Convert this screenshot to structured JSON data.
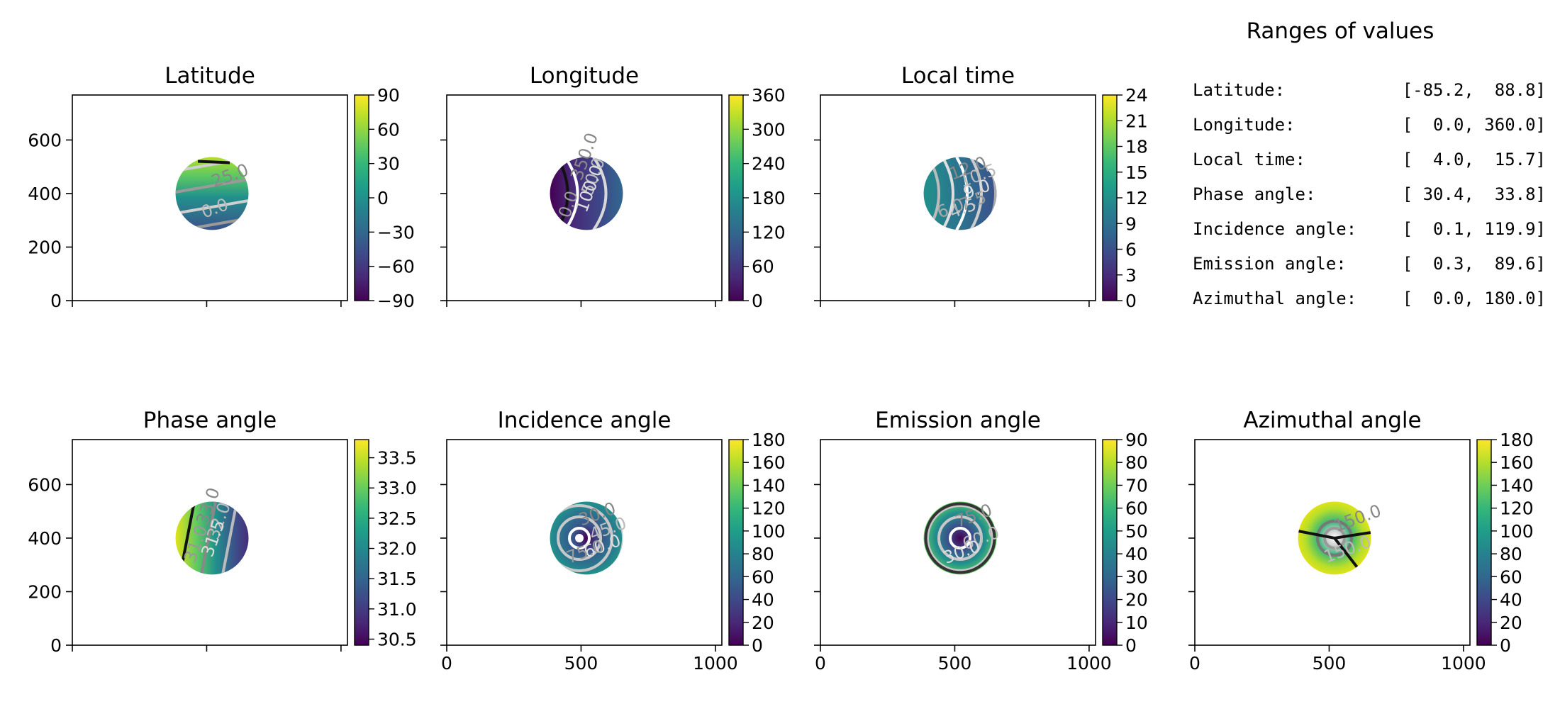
{
  "ranges_panel": {
    "title": "Ranges of values",
    "rows": [
      {
        "label": "Latitude:",
        "value": "[-85.2,  88.8]"
      },
      {
        "label": "Longitude:",
        "value": "[  0.0, 360.0]"
      },
      {
        "label": "Local time:",
        "value": "[  4.0,  15.7]"
      },
      {
        "label": "Phase angle:",
        "value": "[ 30.4,  33.8]"
      },
      {
        "label": "Incidence angle:",
        "value": "[  0.1, 119.9]"
      },
      {
        "label": "Emission angle:",
        "value": "[  0.3,  89.6]"
      },
      {
        "label": "Azimuthal angle:",
        "value": "[  0.0, 180.0]"
      }
    ]
  },
  "chart_data": [
    {
      "type": "heatmap",
      "title": "Latitude",
      "colormap": "viridis",
      "xlim": [
        0,
        1024
      ],
      "ylim": [
        0,
        768
      ],
      "xticks": [
        0,
        500,
        1000
      ],
      "xtick_labels_shown": false,
      "yticks": [
        0,
        200,
        400,
        600
      ],
      "ytick_labels_shown": true,
      "disc": {
        "center": [
          520,
          400
        ],
        "radius": 140
      },
      "colorbar": {
        "min": -90,
        "max": 90,
        "ticks": [
          "90",
          "60",
          "30",
          "0",
          "−30",
          "−60",
          "−90"
        ]
      },
      "contour_labels": [
        "25.0",
        "0.0"
      ]
    },
    {
      "type": "heatmap",
      "title": "Longitude",
      "colormap": "viridis",
      "xlim": [
        0,
        1024
      ],
      "ylim": [
        0,
        768
      ],
      "xticks": [
        0,
        500,
        1000
      ],
      "xtick_labels_shown": false,
      "yticks": [
        0,
        200,
        400,
        600
      ],
      "ytick_labels_shown": false,
      "disc": {
        "center": [
          520,
          400
        ],
        "radius": 140
      },
      "colorbar": {
        "min": 0,
        "max": 360,
        "ticks": [
          "360",
          "300",
          "240",
          "180",
          "120",
          "60",
          "0"
        ]
      },
      "contour_labels": [
        "350.0",
        "50.0",
        "100.0",
        "0.0"
      ]
    },
    {
      "type": "heatmap",
      "title": "Local time",
      "colormap": "viridis",
      "xlim": [
        0,
        1024
      ],
      "ylim": [
        0,
        768
      ],
      "xticks": [
        0,
        500,
        1000
      ],
      "xtick_labels_shown": false,
      "yticks": [
        0,
        200,
        400,
        600
      ],
      "ytick_labels_shown": false,
      "disc": {
        "center": [
          520,
          400
        ],
        "radius": 140
      },
      "colorbar": {
        "min": 0,
        "max": 24,
        "ticks": [
          "24",
          "21",
          "18",
          "15",
          "12",
          "9",
          "6",
          "3",
          "0"
        ]
      },
      "contour_labels": [
        "12.0",
        "10.5",
        "9.0",
        "7.5",
        "4.5",
        "6.0"
      ]
    },
    {
      "type": "heatmap",
      "title": "Phase angle",
      "colormap": "viridis",
      "xlim": [
        0,
        1024
      ],
      "ylim": [
        0,
        768
      ],
      "xticks": [
        0,
        500,
        1000
      ],
      "xtick_labels_shown": false,
      "yticks": [
        0,
        200,
        400,
        600
      ],
      "ytick_labels_shown": true,
      "disc": {
        "center": [
          520,
          400
        ],
        "radius": 140
      },
      "colorbar": {
        "min": 30.4,
        "max": 33.8,
        "ticks": [
          "33.5",
          "33.0",
          "32.5",
          "32.0",
          "31.5",
          "31.0",
          "30.5"
        ]
      },
      "contour_labels": [
        "33.0",
        "32.0",
        "31.5",
        "31.0"
      ]
    },
    {
      "type": "heatmap",
      "title": "Incidence angle",
      "colormap": "viridis",
      "xlim": [
        0,
        1024
      ],
      "ylim": [
        0,
        768
      ],
      "xticks": [
        0,
        500,
        1000
      ],
      "xtick_labels_shown": true,
      "yticks": [
        0,
        200,
        400,
        600
      ],
      "ytick_labels_shown": false,
      "disc": {
        "center": [
          520,
          400
        ],
        "radius": 140
      },
      "colorbar": {
        "min": 0,
        "max": 180,
        "ticks": [
          "180",
          "160",
          "140",
          "120",
          "100",
          "80",
          "60",
          "40",
          "20",
          "0"
        ]
      },
      "contour_labels": [
        "30.0",
        "45.0",
        "60.0",
        "75.0"
      ]
    },
    {
      "type": "heatmap",
      "title": "Emission angle",
      "colormap": "viridis",
      "xlim": [
        0,
        1024
      ],
      "ylim": [
        0,
        768
      ],
      "xticks": [
        0,
        500,
        1000
      ],
      "xtick_labels_shown": true,
      "yticks": [
        0,
        200,
        400,
        600
      ],
      "ytick_labels_shown": false,
      "disc": {
        "center": [
          520,
          400
        ],
        "radius": 140
      },
      "colorbar": {
        "min": 0,
        "max": 90,
        "ticks": [
          "90",
          "80",
          "70",
          "60",
          "50",
          "40",
          "30",
          "20",
          "10",
          "0"
        ]
      },
      "contour_labels": [
        "75.0",
        "60.0",
        "30.0"
      ]
    },
    {
      "type": "heatmap",
      "title": "Azimuthal angle",
      "colormap": "viridis",
      "xlim": [
        0,
        1024
      ],
      "ylim": [
        0,
        768
      ],
      "xticks": [
        0,
        500,
        1000
      ],
      "xtick_labels_shown": true,
      "yticks": [
        0,
        200,
        400,
        600
      ],
      "ytick_labels_shown": false,
      "disc": {
        "center": [
          520,
          400
        ],
        "radius": 140
      },
      "colorbar": {
        "min": 0,
        "max": 180,
        "ticks": [
          "180",
          "160",
          "140",
          "120",
          "100",
          "80",
          "60",
          "40",
          "20",
          "0"
        ]
      },
      "contour_labels": [
        "150.0",
        "150.0"
      ]
    }
  ]
}
